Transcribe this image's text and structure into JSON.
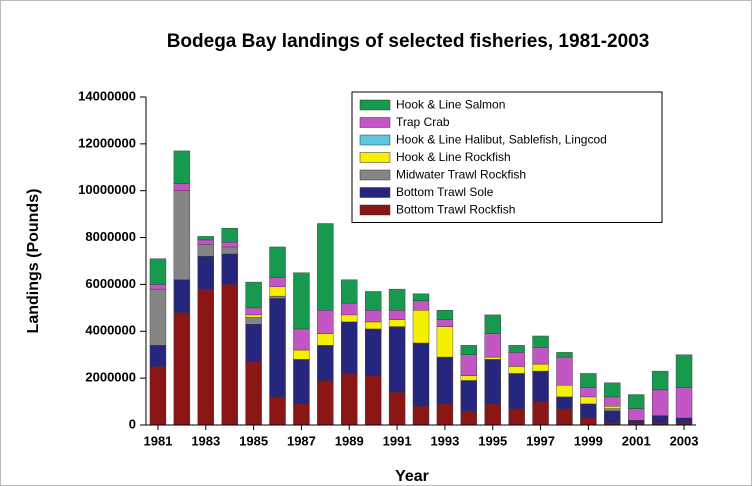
{
  "chart_data": {
    "type": "stacked-bar",
    "title": "Bodega Bay landings of selected fisheries, 1981-2003",
    "x_label": "Year",
    "y_label": "Landings (Pounds)",
    "categories": [
      "1981",
      null,
      "1983",
      null,
      "1985",
      null,
      "1987",
      null,
      "1989",
      null,
      "1991",
      null,
      "1993",
      null,
      "1995",
      null,
      "1997",
      null,
      "1999",
      null,
      "2001",
      null,
      "2003"
    ],
    "ylim": [
      0,
      14000000
    ],
    "yticks": [
      0,
      2000000,
      4000000,
      6000000,
      8000000,
      10000000,
      12000000,
      14000000
    ],
    "series": [
      {
        "name": "Bottom Trawl Rockfish",
        "color": "#8b1616",
        "values": [
          2500000,
          4800000,
          5800000,
          6000000,
          2700000,
          1200000,
          900000,
          1900000,
          2200000,
          2100000,
          1400000,
          800000,
          900000,
          600000,
          900000,
          700000,
          1000000,
          700000,
          300000,
          100000,
          100000,
          100000,
          100000
        ]
      },
      {
        "name": "Bottom Trawl Sole",
        "color": "#26267f",
        "values": [
          900000,
          1400000,
          1400000,
          1300000,
          1600000,
          4200000,
          1900000,
          1500000,
          2200000,
          2000000,
          2800000,
          2700000,
          2000000,
          1300000,
          1900000,
          1500000,
          1300000,
          500000,
          600000,
          500000,
          100000,
          300000,
          200000
        ]
      },
      {
        "name": "Midwater Trawl Rockfish",
        "color": "#858585",
        "values": [
          2400000,
          3800000,
          500000,
          300000,
          300000,
          100000,
          0,
          0,
          0,
          0,
          0,
          0,
          0,
          0,
          0,
          0,
          0,
          0,
          0,
          100000,
          0,
          0,
          0
        ]
      },
      {
        "name": "Hook & Line Rockfish",
        "color": "#f5f000",
        "values": [
          0,
          0,
          0,
          0,
          100000,
          400000,
          400000,
          500000,
          300000,
          300000,
          300000,
          1400000,
          1300000,
          200000,
          100000,
          300000,
          300000,
          500000,
          300000,
          100000,
          0,
          0,
          0
        ]
      },
      {
        "name": "Hook & Line Halibut, Sablefish, Lingcod",
        "color": "#5cc8e0",
        "values": [
          0,
          0,
          0,
          0,
          0,
          0,
          0,
          0,
          0,
          0,
          0,
          0,
          0,
          0,
          0,
          0,
          0,
          0,
          0,
          0,
          0,
          0,
          0
        ]
      },
      {
        "name": "Trap Crab",
        "color": "#c455c4",
        "values": [
          200000,
          300000,
          200000,
          200000,
          300000,
          400000,
          900000,
          1000000,
          500000,
          500000,
          400000,
          400000,
          300000,
          900000,
          1000000,
          600000,
          700000,
          1200000,
          400000,
          400000,
          500000,
          1100000,
          1300000
        ]
      },
      {
        "name": "Hook & Line Salmon",
        "color": "#179a4e",
        "values": [
          1100000,
          1400000,
          150000,
          600000,
          1100000,
          1300000,
          2400000,
          3700000,
          1000000,
          800000,
          900000,
          300000,
          400000,
          400000,
          800000,
          300000,
          500000,
          200000,
          600000,
          600000,
          600000,
          800000,
          1400000
        ]
      }
    ]
  }
}
